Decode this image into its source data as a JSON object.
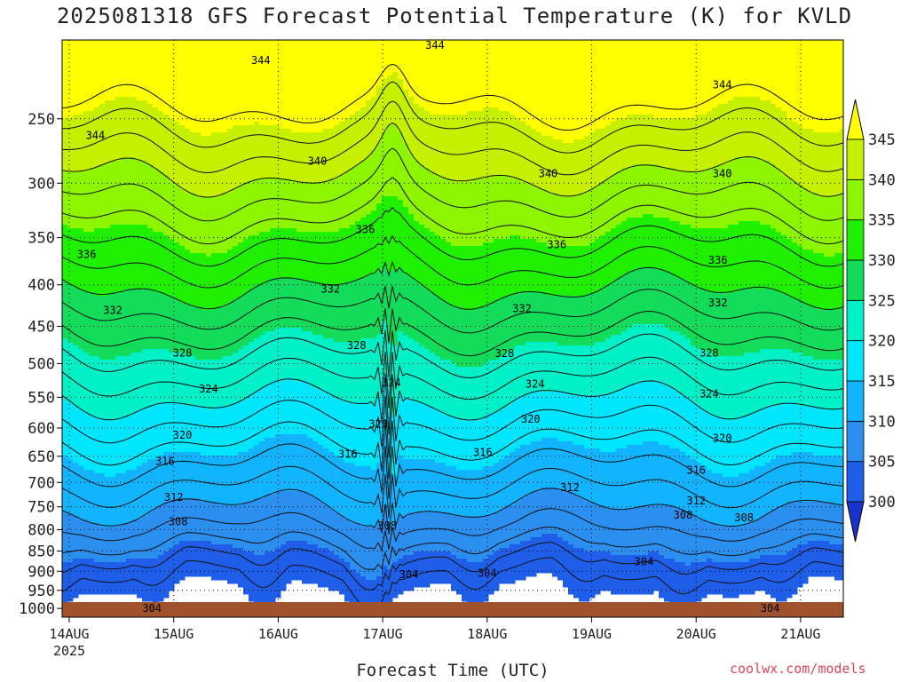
{
  "title": "2025081318 GFS Forecast Potential Temperature (K) for KVLD",
  "xlabel": "Forecast Time (UTC)",
  "credit": "coolwx.com/models",
  "chart_data": {
    "type": "heatmap",
    "title": "2025081318 GFS Forecast Potential Temperature (K) for KVLD",
    "xlabel": "Forecast Time (UTC)",
    "ylabel": "",
    "x_ticks": [
      "14AUG",
      "15AUG",
      "16AUG",
      "17AUG",
      "18AUG",
      "19AUG",
      "20AUG",
      "21AUG"
    ],
    "x_sublabel": "2025",
    "y_ticks": [
      250,
      300,
      350,
      400,
      450,
      500,
      550,
      600,
      650,
      700,
      750,
      800,
      850,
      900,
      950,
      1000
    ],
    "y_scale": "log",
    "y_reversed": true,
    "colorbar": {
      "levels": [
        300,
        305,
        310,
        315,
        320,
        325,
        330,
        335,
        340,
        345
      ],
      "colors": [
        "#1a33cc",
        "#1f5ee8",
        "#2b8ff0",
        "#12b4ff",
        "#00e6ff",
        "#00f0c8",
        "#12dc5a",
        "#1ef000",
        "#8ef500",
        "#c6f000",
        "#ffff00"
      ],
      "extend": "both"
    },
    "contour_interval": 2,
    "contour_labels": [
      {
        "value": 344,
        "time": "14AUG 06",
        "pressure": 262
      },
      {
        "value": 344,
        "time": "15AUG 20",
        "pressure": 212
      },
      {
        "value": 344,
        "time": "17AUG 12",
        "pressure": 203
      },
      {
        "value": 344,
        "time": "20AUG 06",
        "pressure": 227
      },
      {
        "value": 340,
        "time": "16AUG 09",
        "pressure": 282
      },
      {
        "value": 340,
        "time": "18AUG 14",
        "pressure": 292
      },
      {
        "value": 340,
        "time": "20AUG 06",
        "pressure": 292
      },
      {
        "value": 336,
        "time": "14AUG 04",
        "pressure": 367
      },
      {
        "value": 336,
        "time": "16AUG 20",
        "pressure": 342
      },
      {
        "value": 336,
        "time": "18AUG 16",
        "pressure": 357
      },
      {
        "value": 336,
        "time": "20AUG 05",
        "pressure": 373
      },
      {
        "value": 332,
        "time": "14AUG 10",
        "pressure": 430
      },
      {
        "value": 332,
        "time": "16AUG 12",
        "pressure": 405
      },
      {
        "value": 332,
        "time": "18AUG 08",
        "pressure": 428
      },
      {
        "value": 332,
        "time": "20AUG 05",
        "pressure": 421
      },
      {
        "value": 328,
        "time": "15AUG 02",
        "pressure": 485
      },
      {
        "value": 328,
        "time": "16AUG 18",
        "pressure": 475
      },
      {
        "value": 328,
        "time": "18AUG 04",
        "pressure": 486
      },
      {
        "value": 328,
        "time": "20AUG 03",
        "pressure": 485
      },
      {
        "value": 324,
        "time": "15AUG 08",
        "pressure": 537
      },
      {
        "value": 324,
        "time": "17AUG 02",
        "pressure": 528
      },
      {
        "value": 324,
        "time": "18AUG 11",
        "pressure": 530
      },
      {
        "value": 324,
        "time": "20AUG 03",
        "pressure": 545
      },
      {
        "value": 320,
        "time": "15AUG 02",
        "pressure": 612
      },
      {
        "value": 320,
        "time": "16AUG 23",
        "pressure": 593
      },
      {
        "value": 320,
        "time": "18AUG 10",
        "pressure": 585
      },
      {
        "value": 320,
        "time": "20AUG 06",
        "pressure": 618
      },
      {
        "value": 316,
        "time": "14AUG 22",
        "pressure": 659
      },
      {
        "value": 316,
        "time": "16AUG 16",
        "pressure": 646
      },
      {
        "value": 316,
        "time": "17AUG 23",
        "pressure": 643
      },
      {
        "value": 316,
        "time": "20AUG 00",
        "pressure": 676
      },
      {
        "value": 312,
        "time": "15AUG 00",
        "pressure": 730
      },
      {
        "value": 312,
        "time": "18AUG 19",
        "pressure": 710
      },
      {
        "value": 312,
        "time": "20AUG 00",
        "pressure": 737
      },
      {
        "value": 308,
        "time": "15AUG 01",
        "pressure": 782
      },
      {
        "value": 308,
        "time": "17AUG 01",
        "pressure": 791
      },
      {
        "value": 308,
        "time": "19AUG 21",
        "pressure": 768
      },
      {
        "value": 308,
        "time": "20AUG 11",
        "pressure": 773
      },
      {
        "value": 304,
        "time": "17AUG 06",
        "pressure": 908
      },
      {
        "value": 304,
        "time": "18AUG 00",
        "pressure": 905
      },
      {
        "value": 304,
        "time": "19AUG 12",
        "pressure": 876
      },
      {
        "value": 304,
        "time": "14AUG 19",
        "pressure": 1000
      },
      {
        "value": 304,
        "time": "20AUG 17",
        "pressure": 1000
      }
    ],
    "legend": "right",
    "grid": true
  }
}
